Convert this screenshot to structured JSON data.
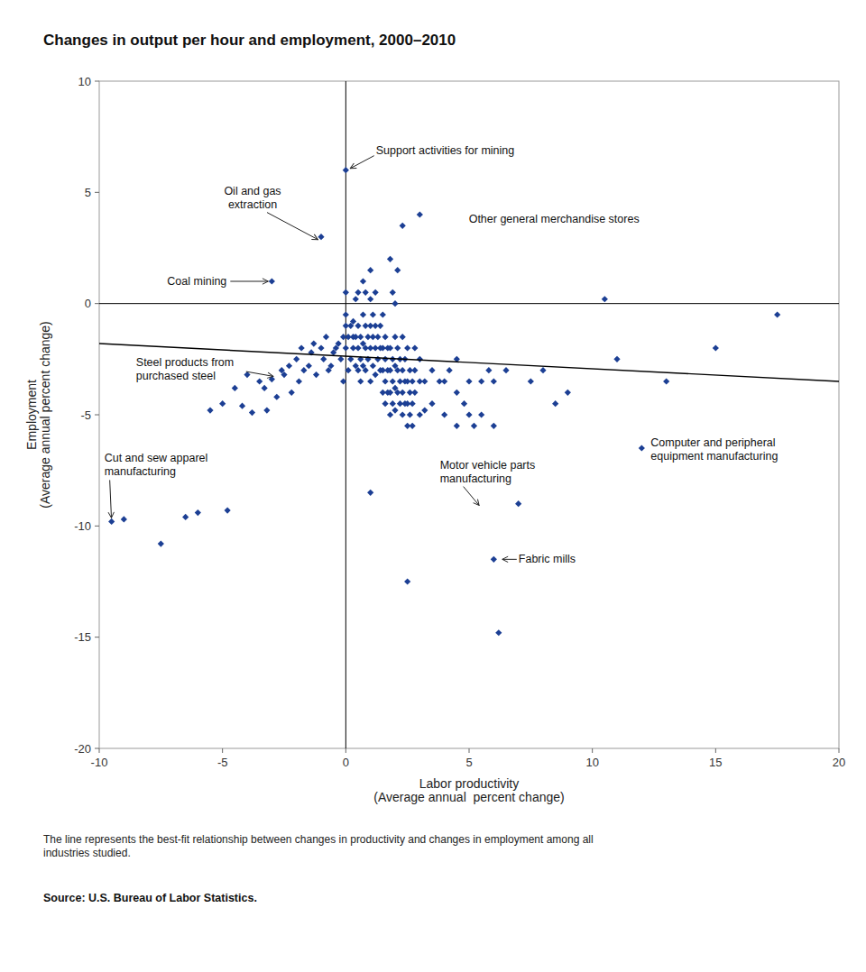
{
  "chart_data": {
    "type": "scatter",
    "title": "Changes in output per hour and employment, 2000–2010",
    "xlabel": "Labor productivity\n(Average annual  percent change)",
    "ylabel": "Employment\n(Average annual percent change)",
    "footnote": "The line represents the best-fit relationship between changes in productivity and changes in employment among all\nindustries studied.",
    "source": "Source: U.S. Bureau of Labor Statistics.",
    "xlim": [
      -10,
      20
    ],
    "ylim": [
      -20,
      10
    ],
    "xticks": [
      -10,
      -5,
      0,
      5,
      10,
      15,
      20
    ],
    "yticks": [
      -20,
      -15,
      -10,
      -5,
      0,
      5,
      10
    ],
    "grid": false,
    "series": [
      {
        "type": "scatter",
        "color": "#1c3f94",
        "marker": "diamond",
        "x": [
          -9.5,
          -9.0,
          -7.5,
          -6.5,
          -6.0,
          -5.5,
          -5.0,
          -4.8,
          -4.5,
          -4.2,
          -4.0,
          -3.8,
          -3.5,
          -3.3,
          -3.2,
          -3.0,
          -2.8,
          -2.6,
          -2.5,
          -2.3,
          -2.2,
          -2.0,
          -1.9,
          -1.8,
          -1.7,
          -1.5,
          -1.4,
          -1.3,
          -1.2,
          -1.0,
          -0.9,
          -0.8,
          -0.7,
          -0.6,
          -0.5,
          -0.4,
          -0.3,
          -0.2,
          -0.1,
          -0.1,
          0.0,
          0.0,
          0.0,
          0.0,
          0.1,
          0.1,
          0.2,
          0.2,
          0.3,
          0.3,
          0.3,
          0.4,
          0.4,
          0.4,
          0.5,
          0.5,
          0.5,
          0.5,
          0.6,
          0.6,
          0.6,
          0.7,
          0.7,
          0.7,
          0.7,
          0.8,
          0.8,
          0.8,
          0.8,
          0.9,
          0.9,
          1.0,
          1.0,
          1.0,
          1.0,
          1.0,
          1.1,
          1.1,
          1.1,
          1.2,
          1.2,
          1.2,
          1.2,
          1.3,
          1.3,
          1.4,
          1.4,
          1.4,
          1.5,
          1.5,
          1.5,
          1.5,
          1.6,
          1.6,
          1.6,
          1.6,
          1.7,
          1.7,
          1.7,
          1.8,
          1.8,
          1.8,
          1.8,
          1.8,
          1.9,
          1.9,
          1.9,
          1.9,
          2.0,
          2.0,
          2.0,
          2.0,
          2.0,
          2.1,
          2.1,
          2.1,
          2.1,
          2.2,
          2.2,
          2.2,
          2.3,
          2.3,
          2.3,
          2.3,
          2.3,
          2.4,
          2.4,
          2.4,
          2.5,
          2.5,
          2.5,
          2.5,
          2.6,
          2.6,
          2.6,
          2.7,
          2.7,
          2.7,
          2.8,
          2.8,
          2.8,
          3.0,
          3.0,
          3.0,
          3.0,
          3.2,
          3.2,
          3.5,
          3.5,
          3.8,
          4.0,
          4.0,
          4.2,
          4.5,
          4.5,
          4.5,
          4.8,
          5.0,
          5.0,
          5.2,
          5.5,
          5.5,
          5.8,
          6.0,
          6.0,
          6.5,
          7.0,
          7.5,
          8.0,
          8.5,
          9.0,
          10.5,
          11.0,
          12.0,
          13.0,
          15.0,
          17.5,
          0.0,
          1.0,
          2.5,
          6.0,
          6.2,
          -3.0,
          -1.0
        ],
        "values": [
          -9.8,
          -9.7,
          -10.8,
          -9.6,
          -9.4,
          -4.8,
          -4.5,
          -9.3,
          -3.8,
          -4.6,
          -3.2,
          -4.9,
          -3.5,
          -3.8,
          -4.8,
          -3.4,
          -4.2,
          -3.0,
          -3.2,
          -2.8,
          -4.0,
          -2.5,
          -3.5,
          -2.0,
          -3.0,
          -2.8,
          -2.2,
          -1.8,
          -3.2,
          -2.0,
          -2.5,
          -1.5,
          -3.0,
          -2.8,
          -2.2,
          -2.0,
          -1.8,
          -2.5,
          -1.5,
          -3.5,
          -2.0,
          -0.5,
          0.5,
          -1.0,
          -1.5,
          -3.0,
          -2.5,
          -1.0,
          -2.0,
          -0.8,
          -1.5,
          -2.8,
          -1.5,
          0.2,
          -3.0,
          -2.0,
          -1.0,
          0.5,
          -3.5,
          -2.5,
          -1.5,
          -2.8,
          -1.8,
          -0.5,
          1.0,
          -3.0,
          -2.0,
          -1.0,
          0.5,
          -2.5,
          -1.5,
          -3.5,
          -2.0,
          -1.0,
          0.2,
          1.5,
          -2.8,
          -1.5,
          -0.5,
          -3.2,
          -2.0,
          -1.0,
          0.5,
          -2.5,
          -1.5,
          -3.0,
          -2.0,
          -1.0,
          -4.0,
          -3.0,
          -2.0,
          -0.5,
          -4.5,
          -3.5,
          -2.5,
          -1.5,
          -4.0,
          -3.0,
          -2.0,
          -5.0,
          -4.0,
          -3.0,
          -2.0,
          2.0,
          -4.5,
          -3.5,
          -2.5,
          0.5,
          -4.8,
          -3.8,
          -2.8,
          -1.5,
          0.0,
          -4.0,
          -3.0,
          -2.0,
          1.5,
          -4.5,
          -3.5,
          -2.5,
          -5.0,
          -4.0,
          -3.0,
          -1.5,
          3.5,
          -4.5,
          -3.5,
          -2.5,
          -5.5,
          -4.5,
          -3.5,
          -2.0,
          -5.0,
          -4.0,
          -3.0,
          -5.5,
          -4.5,
          -3.5,
          -4.0,
          -3.0,
          -2.0,
          -5.0,
          -3.5,
          -2.5,
          4.0,
          -4.8,
          -3.5,
          -4.5,
          -3.0,
          -3.5,
          -5.0,
          -3.5,
          -3.0,
          -5.5,
          -4.0,
          -2.5,
          -4.5,
          -5.0,
          -3.5,
          -5.5,
          -5.0,
          -3.5,
          -3.0,
          -5.5,
          -3.5,
          -3.0,
          -9.0,
          -3.5,
          -3.0,
          -4.5,
          -4.0,
          0.2,
          -2.5,
          -6.5,
          -3.5,
          -2.0,
          -0.5,
          6.0,
          -8.5,
          -12.5,
          -11.5,
          -14.8,
          1.0,
          3.0
        ]
      },
      {
        "type": "line",
        "color": "#000000",
        "x": [
          -10,
          20
        ],
        "values": [
          -1.8,
          -3.5
        ]
      }
    ],
    "annotations": [
      {
        "text": "Support activities for mining",
        "x": 0.05,
        "y": 6.0
      },
      {
        "text": "Oil and gas\nextraction",
        "x": -1.0,
        "y": 2.8
      },
      {
        "text": "Coal mining",
        "x": -3.0,
        "y": 1.0
      },
      {
        "text": "Other general merchandise stores",
        "x": 8.5,
        "y": 3.4
      },
      {
        "text": "Steel products from\npurchased steel",
        "x": -2.8,
        "y": -3.3
      },
      {
        "text": "Cut and sew apparel\nmanufacturing",
        "x": -9.5,
        "y": -9.8
      },
      {
        "text": "Motor vehicle parts\nmanufacturing",
        "x": 5.5,
        "y": -9.2
      },
      {
        "text": "Computer and peripheral\nequipment manufacturing",
        "x": 12.0,
        "y": -6.5
      },
      {
        "text": "Fabric mills",
        "x": 6.2,
        "y": -11.5
      }
    ]
  }
}
